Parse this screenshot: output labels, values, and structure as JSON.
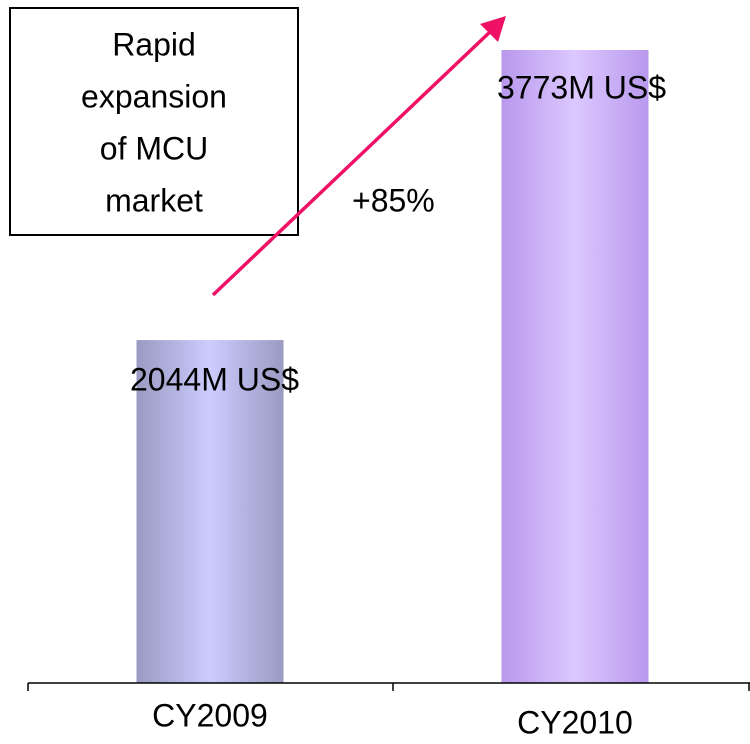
{
  "chart_data": {
    "type": "bar",
    "categories": [
      "CY2009",
      "CY2010"
    ],
    "values": [
      2044,
      3773
    ],
    "value_labels": [
      "2044M US$",
      "3773M US$"
    ],
    "colors": [
      "#ccccff",
      "#dcc8ff"
    ],
    "edge_colors": [
      "#9a9ac2",
      "#b898ec"
    ],
    "annotations": {
      "growth": "+85%",
      "box": [
        "Rapid",
        "expansion",
        "of MCU",
        "market"
      ]
    },
    "arrow_color": "#ee1166"
  }
}
